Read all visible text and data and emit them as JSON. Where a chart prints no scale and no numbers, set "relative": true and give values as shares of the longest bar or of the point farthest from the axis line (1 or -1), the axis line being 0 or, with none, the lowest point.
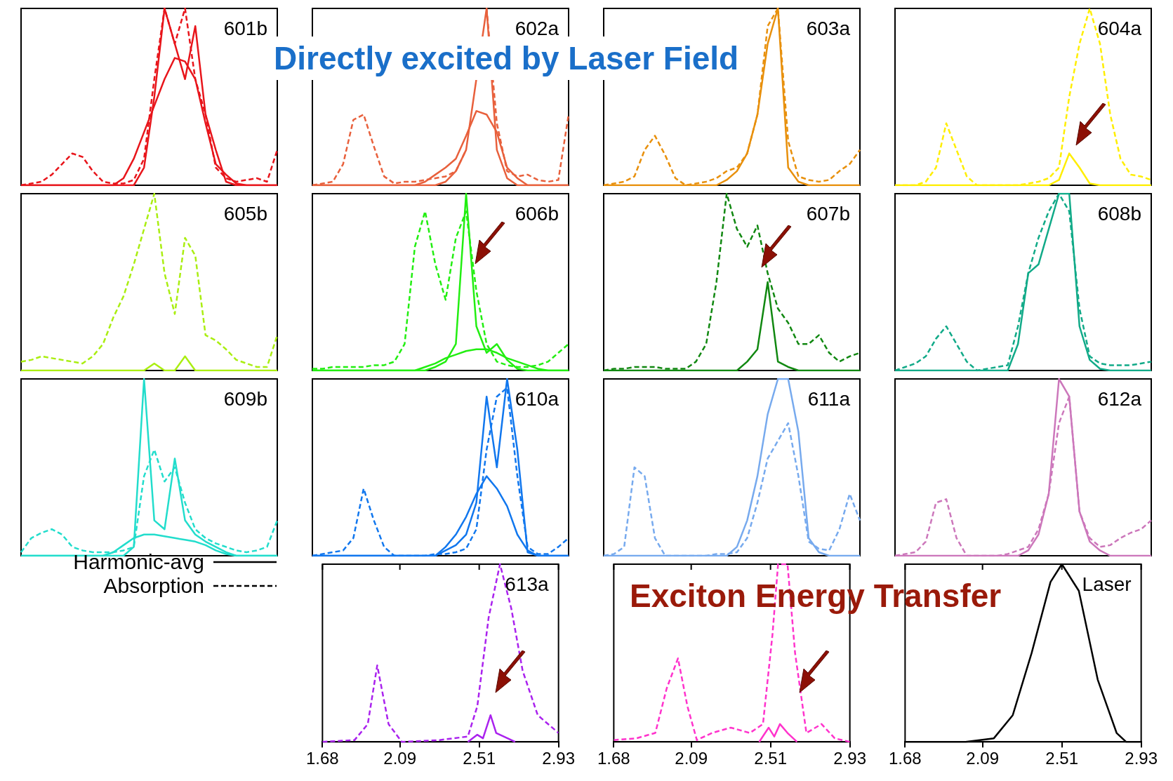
{
  "chart_data": [
    {
      "type": "line",
      "title": "601b",
      "relative": true,
      "categories": [
        null,
        null,
        null,
        null,
        null,
        null,
        null,
        null,
        null,
        null,
        null,
        null,
        null,
        null,
        null,
        null,
        null,
        null,
        null,
        null,
        null,
        null,
        null,
        null,
        null,
        null
      ],
      "tick_labels": false,
      "series": [
        {
          "color": "#e8151b",
          "line_style": "dashed",
          "values": [
            0,
            0.01,
            0.02,
            0.06,
            0.12,
            0.18,
            0.16,
            0.08,
            0.02,
            0.01,
            0.01,
            0.03,
            0.15,
            0.6,
            1,
            0.8,
            1,
            0.6,
            0.4,
            0.1,
            0.04,
            0.02,
            0.03,
            0.04,
            0.02,
            0.2
          ]
        },
        {
          "color": "#e8151b",
          "line_style": "solid",
          "values": [
            0,
            0,
            0,
            0,
            0,
            0,
            0,
            0,
            0,
            0,
            0,
            0,
            0.1,
            0.5,
            1,
            0.8,
            0.6,
            0.9,
            0.4,
            0.2,
            0.02,
            0,
            0,
            0,
            0,
            0
          ]
        },
        {
          "color": "#e8151b",
          "line_style": "solid",
          "values": [
            0,
            0,
            0,
            0,
            0,
            0,
            0,
            0,
            0,
            0,
            0.04,
            0.15,
            0.3,
            0.45,
            0.6,
            0.72,
            0.7,
            0.6,
            0.35,
            0.12,
            0.06,
            0.01,
            0,
            0,
            0,
            0
          ]
        }
      ]
    },
    {
      "type": "line",
      "title": "602a",
      "relative": true,
      "categories": [
        null,
        null,
        null,
        null,
        null,
        null,
        null,
        null,
        null,
        null,
        null,
        null,
        null,
        null,
        null,
        null,
        null,
        null,
        null,
        null,
        null,
        null,
        null,
        null,
        null,
        null
      ],
      "tick_labels": false,
      "annotations": [
        "Directly excited by Laser Field"
      ],
      "series": [
        {
          "color": "#e8603c",
          "line_style": "dashed",
          "values": [
            0,
            0.01,
            0.02,
            0.12,
            0.37,
            0.4,
            0.22,
            0.05,
            0.01,
            0.02,
            0.02,
            0.03,
            0.04,
            0.05,
            0.08,
            0.2,
            null,
            1,
            0.35,
            0.08,
            0.05,
            0.06,
            0.03,
            0.02,
            0.03,
            0.4
          ]
        },
        {
          "color": "#e8603c",
          "line_style": "solid",
          "values": [
            0,
            0,
            0,
            0,
            0,
            0,
            0,
            0,
            0,
            0,
            0,
            0,
            0,
            0.02,
            0.08,
            0.2,
            0.6,
            1,
            0.2,
            0.04,
            0,
            0,
            0,
            0,
            0,
            0
          ]
        },
        {
          "color": "#e8603c",
          "line_style": "solid",
          "values": [
            0,
            0,
            0,
            0,
            0,
            0,
            0,
            0,
            0,
            0,
            0,
            0.02,
            0.06,
            0.1,
            0.15,
            0.28,
            0.42,
            0.4,
            0.3,
            0.1,
            0.04,
            0,
            0,
            0,
            0,
            0
          ]
        }
      ]
    },
    {
      "type": "line",
      "title": "603a",
      "relative": true,
      "categories": [
        null,
        null,
        null,
        null,
        null,
        null,
        null,
        null,
        null,
        null,
        null,
        null,
        null,
        null,
        null,
        null,
        null,
        null,
        null,
        null,
        null,
        null,
        null,
        null,
        null,
        null
      ],
      "tick_labels": false,
      "series": [
        {
          "color": "#e8900c",
          "line_style": "dashed",
          "values": [
            0,
            0.01,
            0.02,
            0.05,
            0.2,
            0.28,
            0.17,
            0.04,
            0,
            0.01,
            0.02,
            0.04,
            0.08,
            0.1,
            0.18,
            0.4,
            0.9,
            1,
            0.25,
            0.05,
            0.03,
            0.02,
            0.03,
            0.08,
            0.12,
            0.2
          ]
        },
        {
          "color": "#e8900c",
          "line_style": "solid",
          "values": [
            0,
            0,
            0,
            0,
            0,
            0,
            0,
            0,
            0,
            0,
            0,
            0,
            0.03,
            0.08,
            0.18,
            0.4,
            0.8,
            1,
            0.1,
            0.02,
            0,
            0,
            0,
            0,
            0,
            0
          ]
        }
      ]
    },
    {
      "type": "line",
      "title": "604a",
      "relative": true,
      "categories": [
        null,
        null,
        null,
        null,
        null,
        null,
        null,
        null,
        null,
        null,
        null,
        null,
        null,
        null,
        null,
        null,
        null,
        null,
        null,
        null,
        null,
        null,
        null,
        null,
        null,
        null
      ],
      "tick_labels": false,
      "series": [
        {
          "color": "#ffee00",
          "line_style": "dashed",
          "values": [
            0,
            0,
            0,
            0.02,
            0.1,
            0.35,
            0.2,
            0.05,
            0,
            0,
            0,
            0,
            0,
            0.01,
            0.02,
            0.04,
            0.1,
            0.5,
            0.8,
            1,
            0.8,
            0.4,
            0.15,
            0.06,
            0.05,
            0.03
          ]
        },
        {
          "color": "#ffee00",
          "line_style": "solid",
          "values": [
            0,
            0,
            0,
            0,
            0,
            0,
            0,
            0,
            0,
            0,
            0,
            0,
            0,
            0,
            0,
            0,
            0.03,
            0.18,
            0.1,
            0.01,
            0,
            0,
            0,
            0,
            0,
            0
          ]
        }
      ]
    },
    {
      "type": "line",
      "title": "605b",
      "relative": true,
      "categories": [
        null,
        null,
        null,
        null,
        null,
        null,
        null,
        null,
        null,
        null,
        null,
        null,
        null,
        null,
        null,
        null,
        null,
        null,
        null,
        null,
        null,
        null,
        null,
        null,
        null,
        null
      ],
      "tick_labels": false,
      "series": [
        {
          "color": "#aaee11",
          "line_style": "dashed",
          "values": [
            0.05,
            0.06,
            0.08,
            0.07,
            0.06,
            0.05,
            0.04,
            0.08,
            0.15,
            0.3,
            0.42,
            0.6,
            0.8,
            1,
            0.55,
            0.32,
            0.75,
            0.65,
            0.2,
            0.17,
            0.12,
            0.06,
            0.04,
            0.02,
            0.02,
            0.2
          ]
        },
        {
          "color": "#aaee11",
          "line_style": "solid",
          "values": [
            0,
            0,
            0,
            0,
            0,
            0,
            0,
            0,
            0,
            0,
            0,
            0,
            0,
            0.04,
            0,
            0,
            0.08,
            0,
            0,
            0,
            0,
            0,
            0,
            0,
            0,
            0
          ]
        }
      ]
    },
    {
      "type": "line",
      "title": "606b",
      "relative": true,
      "categories": [
        null,
        null,
        null,
        null,
        null,
        null,
        null,
        null,
        null,
        null,
        null,
        null,
        null,
        null,
        null,
        null,
        null,
        null,
        null,
        null,
        null,
        null,
        null,
        null,
        null,
        null
      ],
      "tick_labels": false,
      "series": [
        {
          "color": "#22ee11",
          "line_style": "dashed",
          "values": [
            0.01,
            0.01,
            0.02,
            0.02,
            0.02,
            0.02,
            0.03,
            0.03,
            0.05,
            0.15,
            0.7,
            0.9,
            0.6,
            0.4,
            0.75,
            0.9,
            0.45,
            0.15,
            0.05,
            0.03,
            0.02,
            0.02,
            0.03,
            0.05,
            0.1,
            0.15
          ]
        },
        {
          "color": "#22ee11",
          "line_style": "solid",
          "values": [
            0,
            0,
            0,
            0,
            0,
            0,
            0,
            0,
            0,
            0,
            0,
            0,
            0.02,
            0.05,
            0.15,
            1,
            0.25,
            0.1,
            0.15,
            0.06,
            0.01,
            0,
            0,
            0,
            0,
            0
          ]
        },
        {
          "color": "#22ee11",
          "line_style": "solid",
          "values": [
            0,
            0,
            0,
            0,
            0,
            0,
            0,
            0,
            0,
            0,
            0,
            0.02,
            0.04,
            0.07,
            0.09,
            0.11,
            0.12,
            0.12,
            0.1,
            0.07,
            0.05,
            0.03,
            0.01,
            0,
            0,
            0
          ]
        }
      ]
    },
    {
      "type": "line",
      "title": "607b",
      "relative": true,
      "categories": [
        null,
        null,
        null,
        null,
        null,
        null,
        null,
        null,
        null,
        null,
        null,
        null,
        null,
        null,
        null,
        null,
        null,
        null,
        null,
        null,
        null,
        null,
        null,
        null,
        null,
        null
      ],
      "tick_labels": false,
      "series": [
        {
          "color": "#118811",
          "line_style": "dashed",
          "values": [
            0,
            0.01,
            0.01,
            0.02,
            0.02,
            0.02,
            0.01,
            0.01,
            0.01,
            0.05,
            0.15,
            0.5,
            1,
            0.8,
            0.7,
            0.82,
            0.55,
            0.35,
            0.27,
            0.15,
            0.15,
            0.2,
            0.1,
            0.05,
            0.08,
            0.1
          ]
        },
        {
          "color": "#118811",
          "line_style": "solid",
          "values": [
            0,
            0,
            0,
            0,
            0,
            0,
            0,
            0,
            0,
            0,
            0,
            0,
            0,
            0,
            0.05,
            0.12,
            0.5,
            0.05,
            0.02,
            0,
            0,
            0,
            0,
            0,
            0,
            0
          ]
        }
      ]
    },
    {
      "type": "line",
      "title": "608b",
      "relative": true,
      "categories": [
        null,
        null,
        null,
        null,
        null,
        null,
        null,
        null,
        null,
        null,
        null,
        null,
        null,
        null,
        null,
        null,
        null,
        null,
        null,
        null,
        null,
        null,
        null,
        null,
        null,
        null
      ],
      "tick_labels": false,
      "series": [
        {
          "color": "#11aa88",
          "line_style": "dashed",
          "values": [
            0,
            0.02,
            0.04,
            0.08,
            0.18,
            0.25,
            0.15,
            0.05,
            0,
            0.01,
            0.02,
            0.03,
            0.25,
            0.55,
            0.75,
            0.9,
            1,
            0.9,
            0.35,
            0.08,
            0.04,
            0.03,
            0.03,
            0.03,
            0.04,
            0.05
          ]
        },
        {
          "color": "#11aa88",
          "line_style": "solid",
          "values": [
            0,
            0,
            0,
            0,
            0,
            0,
            0,
            0,
            0,
            0,
            0,
            0,
            0.15,
            0.55,
            0.6,
            0.8,
            1,
            1,
            0.25,
            0.06,
            0.01,
            0,
            0,
            0,
            0,
            0
          ]
        }
      ]
    },
    {
      "type": "line",
      "title": "609b",
      "relative": true,
      "categories": [
        null,
        null,
        null,
        null,
        null,
        null,
        null,
        null,
        null,
        null,
        null,
        null,
        null,
        null,
        null,
        null,
        null,
        null,
        null,
        null,
        null,
        null,
        null,
        null,
        null,
        null
      ],
      "tick_labels": false,
      "series": [
        {
          "color": "#22ddcc",
          "line_style": "dashed",
          "values": [
            0.02,
            0.1,
            0.13,
            0.15,
            0.12,
            0.05,
            0.03,
            0.02,
            0.02,
            0.02,
            0.03,
            0.05,
            0.45,
            0.6,
            0.42,
            0.5,
            0.3,
            0.15,
            0.1,
            0.07,
            0.05,
            0.03,
            0.02,
            0.03,
            0.05,
            0.2
          ]
        },
        {
          "color": "#22ddcc",
          "line_style": "solid",
          "values": [
            0,
            0,
            0,
            0,
            0,
            0,
            0,
            0,
            0,
            0,
            0,
            0.05,
            1,
            0.2,
            0.15,
            0.55,
            0.2,
            0.12,
            0.08,
            0.05,
            0.02,
            0,
            0,
            0,
            0,
            0
          ]
        },
        {
          "color": "#22ddcc",
          "line_style": "solid",
          "values": [
            0,
            0,
            0,
            0,
            0,
            0,
            0,
            0,
            0,
            0.02,
            0.06,
            0.1,
            0.12,
            0.12,
            0.11,
            0.1,
            0.09,
            0.08,
            0.06,
            0.03,
            0.01,
            0,
            0,
            0,
            0,
            0
          ]
        }
      ]
    },
    {
      "type": "line",
      "title": "610a",
      "relative": true,
      "categories": [
        null,
        null,
        null,
        null,
        null,
        null,
        null,
        null,
        null,
        null,
        null,
        null,
        null,
        null,
        null,
        null,
        null,
        null,
        null,
        null,
        null,
        null,
        null,
        null,
        null,
        null
      ],
      "tick_labels": false,
      "series": [
        {
          "color": "#1177ee",
          "line_style": "dashed",
          "values": [
            0,
            0.01,
            0.02,
            0.03,
            0.1,
            0.38,
            0.2,
            0.05,
            0,
            0,
            0,
            0,
            0.01,
            0.01,
            0.02,
            0.04,
            0.15,
            0.6,
            0.9,
            0.95,
            0.45,
            0.05,
            0.01,
            0.01,
            0.05,
            0.1
          ]
        },
        {
          "color": "#1177ee",
          "line_style": "solid",
          "values": [
            0,
            0,
            0,
            0,
            0,
            0,
            0,
            0,
            0,
            0,
            0,
            0,
            0,
            0.03,
            0.06,
            0.12,
            0.3,
            0.9,
            0.5,
            1,
            0.6,
            0.02,
            0,
            0,
            0,
            0
          ]
        },
        {
          "color": "#1177ee",
          "line_style": "solid",
          "values": [
            0,
            0,
            0,
            0,
            0,
            0,
            0,
            0,
            0,
            0,
            0,
            0,
            0,
            0.05,
            0.12,
            0.22,
            0.35,
            0.45,
            0.38,
            0.28,
            0.12,
            0.03,
            0,
            0,
            0,
            0
          ]
        }
      ]
    },
    {
      "type": "line",
      "title": "611a",
      "relative": true,
      "categories": [
        null,
        null,
        null,
        null,
        null,
        null,
        null,
        null,
        null,
        null,
        null,
        null,
        null,
        null,
        null,
        null,
        null,
        null,
        null,
        null,
        null,
        null,
        null,
        null,
        null,
        null
      ],
      "tick_labels": false,
      "series": [
        {
          "color": "#77aaee",
          "line_style": "dashed",
          "values": [
            0,
            0.01,
            0.05,
            0.5,
            0.45,
            0.1,
            0,
            0,
            0,
            0,
            0,
            0.01,
            0.01,
            0.02,
            0.1,
            0.3,
            0.55,
            0.65,
            0.75,
            0.45,
            0.08,
            0.04,
            0.03,
            0.15,
            0.35,
            0.2
          ]
        },
        {
          "color": "#77aaee",
          "line_style": "solid",
          "values": [
            0,
            0,
            0,
            0,
            0,
            0,
            0,
            0,
            0,
            0,
            0,
            0,
            0,
            0.05,
            0.2,
            0.45,
            0.8,
            1,
            1,
            0.7,
            0.1,
            0.02,
            0,
            0,
            0,
            0
          ]
        }
      ]
    },
    {
      "type": "line",
      "title": "612a",
      "relative": true,
      "categories": [
        null,
        null,
        null,
        null,
        null,
        null,
        null,
        null,
        null,
        null,
        null,
        null,
        null,
        null,
        null,
        null,
        null,
        null,
        null,
        null,
        null,
        null,
        null,
        null,
        null,
        null
      ],
      "tick_labels": false,
      "series": [
        {
          "color": "#cc77bb",
          "line_style": "dashed",
          "values": [
            0,
            0.01,
            0.02,
            0.08,
            0.3,
            0.32,
            0.1,
            0,
            0,
            0,
            0,
            0.01,
            0.03,
            0.05,
            0.15,
            0.35,
            0.75,
            0.9,
            0.25,
            0.1,
            0.05,
            0.06,
            0.1,
            0.13,
            0.15,
            0.2
          ]
        },
        {
          "color": "#cc77bb",
          "line_style": "solid",
          "values": [
            0,
            0,
            0,
            0,
            0,
            0,
            0,
            0,
            0,
            0,
            0,
            0,
            0,
            0.03,
            0.12,
            0.35,
            1,
            0.9,
            0.25,
            0.08,
            0.03,
            0,
            0,
            0,
            0,
            0
          ]
        }
      ]
    },
    {
      "type": "other",
      "annotations": [
        "Harmonic-avg",
        "Absorption"
      ]
    },
    {
      "type": "line",
      "title": "613a",
      "relative": true,
      "xlim": [
        1.68,
        2.93
      ],
      "xticks": [
        1.68,
        2.09,
        2.51,
        2.93
      ],
      "tick_labels": "x",
      "series": [
        {
          "color": "#aa22ee",
          "line_style": "dashed",
          "x": [
            1.68,
            1.85,
            1.92,
            1.97,
            2.03,
            2.1,
            2.3,
            2.45,
            2.5,
            2.56,
            2.62,
            2.68,
            2.74,
            2.82,
            2.93
          ],
          "values": [
            0,
            0.01,
            0.1,
            0.43,
            0.1,
            0,
            0.01,
            0.03,
            0.2,
            0.7,
            1,
            0.75,
            0.4,
            0.15,
            0.05
          ]
        },
        {
          "color": "#aa22ee",
          "line_style": "solid",
          "x": [
            2.45,
            2.5,
            2.53,
            2.57,
            2.6,
            2.66,
            2.7
          ],
          "values": [
            0,
            0.04,
            0.02,
            0.15,
            0.05,
            0.02,
            0
          ]
        }
      ]
    },
    {
      "type": "line",
      "relative": true,
      "xlim": [
        1.68,
        2.93
      ],
      "xticks": [
        1.68,
        2.09,
        2.51,
        2.93
      ],
      "tick_labels": "x",
      "annotations": [
        "Exciton Energy Transfer"
      ],
      "series": [
        {
          "color": "#ff33cc",
          "line_style": "dashed",
          "x": [
            1.68,
            1.8,
            1.9,
            1.96,
            2.02,
            2.07,
            2.12,
            2.2,
            2.3,
            2.4,
            2.47,
            2.52,
            2.55,
            2.6,
            2.64,
            2.7,
            2.78,
            2.85,
            2.93
          ],
          "values": [
            0.01,
            0.02,
            0.05,
            0.3,
            0.47,
            0.2,
            0.01,
            0.05,
            0.08,
            0.05,
            0.1,
            0.6,
            1,
            1,
            0.5,
            0.05,
            0.1,
            0.02,
            0
          ]
        },
        {
          "color": "#ff33cc",
          "line_style": "solid",
          "x": [
            2.45,
            2.5,
            2.53,
            2.56,
            2.6,
            2.65
          ],
          "values": [
            0,
            0.08,
            0.03,
            0.1,
            0.05,
            0
          ]
        }
      ]
    },
    {
      "type": "line",
      "title": "Laser",
      "relative": true,
      "xlim": [
        1.68,
        2.93
      ],
      "xticks": [
        1.68,
        2.09,
        2.51,
        2.93
      ],
      "tick_labels": "x",
      "series": [
        {
          "color": "#000000",
          "line_style": "solid",
          "x": [
            1.68,
            2.0,
            2.15,
            2.25,
            2.35,
            2.45,
            2.51,
            2.6,
            2.7,
            2.8,
            2.85,
            2.93
          ],
          "values": [
            0,
            0,
            0.02,
            0.15,
            0.5,
            0.9,
            1,
            0.85,
            0.35,
            0.05,
            0,
            0
          ]
        }
      ]
    }
  ]
}
